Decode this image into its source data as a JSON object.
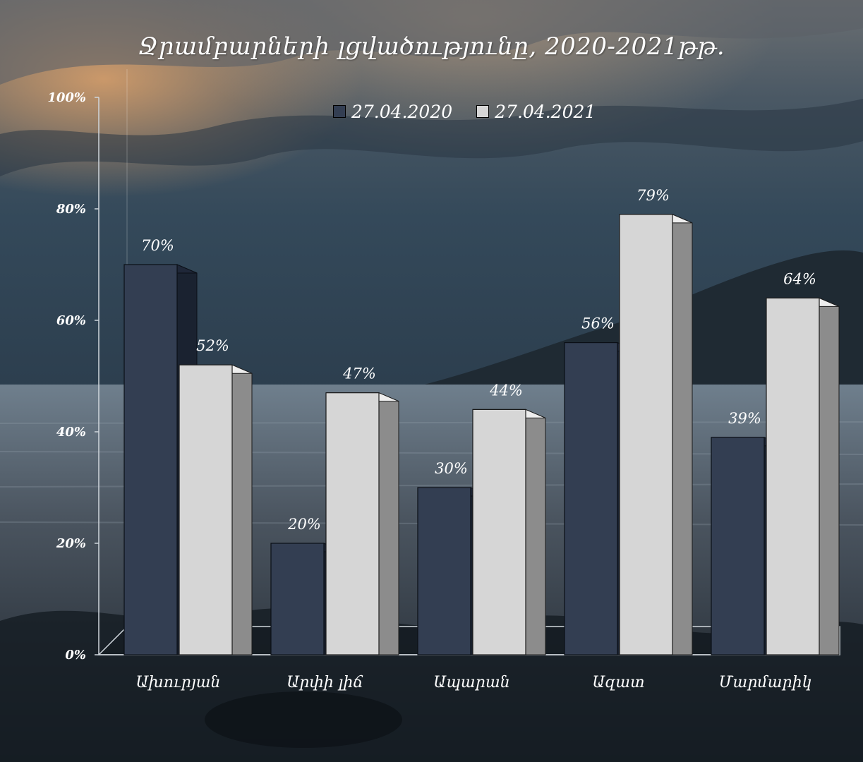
{
  "chart_data": {
    "type": "bar",
    "title": "Ջրամբարների լցվածությունը,  2020-2021թթ.",
    "categories": [
      "Ախուրյան",
      "Արփի լիճ",
      "Ապարան",
      "Ազատ",
      "Մարմարիկ"
    ],
    "series": [
      {
        "name": "27.04.2020",
        "values": [
          70,
          20,
          30,
          56,
          39
        ],
        "labels": [
          "70%",
          "20%",
          "30%",
          "56%",
          "39%"
        ]
      },
      {
        "name": "27.04.2021",
        "values": [
          52,
          47,
          44,
          79,
          64
        ],
        "labels": [
          "52%",
          "47%",
          "44%",
          "79%",
          "64%"
        ]
      }
    ],
    "ylim": [
      0,
      100
    ],
    "yticks": [
      "0%",
      "20%",
      "40%",
      "60%",
      "80%",
      "100%"
    ],
    "grid": false,
    "legend": "top-center",
    "style": "3d-clustered-column",
    "colors": {
      "series1": "#333e52",
      "series2": "#d6d6d6"
    }
  }
}
